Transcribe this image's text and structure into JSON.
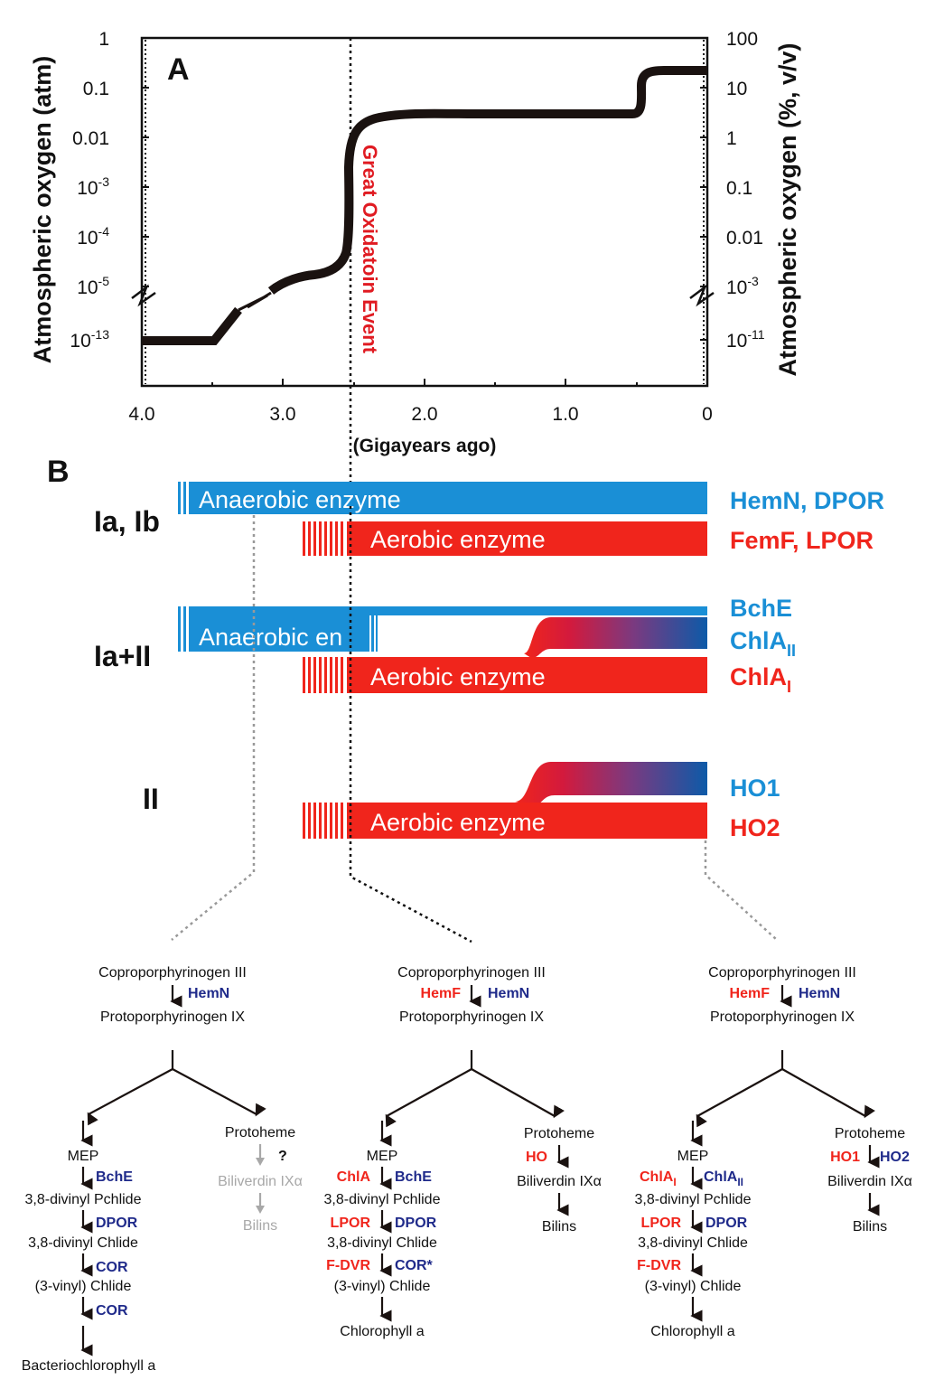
{
  "panel_a": {
    "label": "A",
    "left_axis_label": "Atmospheric oxygen (atm)",
    "right_axis_label": "Atmospheric oxygen (%, v/v)",
    "x_axis_label": "(Gigayears ago)",
    "event_label": "Great Oxidatoin Event",
    "event_color": "#e01b22",
    "x_ticks": [
      "4.0",
      "3.0",
      "2.0",
      "1.0",
      "0"
    ],
    "left_ticks": [
      {
        "base": "1",
        "exp": ""
      },
      {
        "base": "0.1",
        "exp": ""
      },
      {
        "base": "0.01",
        "exp": ""
      },
      {
        "base": "10",
        "exp": "-3"
      },
      {
        "base": "10",
        "exp": "-4"
      },
      {
        "base": "10",
        "exp": "-5"
      },
      {
        "base": "10",
        "exp": "-13"
      }
    ],
    "right_ticks": [
      {
        "base": "100",
        "exp": ""
      },
      {
        "base": "10",
        "exp": ""
      },
      {
        "base": "1",
        "exp": ""
      },
      {
        "base": "0.1",
        "exp": ""
      },
      {
        "base": "0.01",
        "exp": ""
      },
      {
        "base": "10",
        "exp": "-3"
      },
      {
        "base": "10",
        "exp": "-11"
      }
    ]
  },
  "panel_b": {
    "label": "B",
    "groups": [
      {
        "label": "Ia, Ib",
        "anaerobic_label": "Anaerobic enzyme",
        "aerobic_label": "Aerobic enzyme",
        "enzymes": [
          {
            "text": "HemN, DPOR",
            "sub": ""
          },
          {
            "text": "FemF, LPOR",
            "sub": ""
          }
        ]
      },
      {
        "label": "Ia+II",
        "anaerobic_label": "Anaerobic en",
        "aerobic_label": "Aerobic enzyme",
        "enzymes": [
          {
            "text": "BchE",
            "sub": ""
          },
          {
            "text": "ChlA",
            "sub": "II"
          },
          {
            "text": "ChlA",
            "sub": "I"
          }
        ]
      },
      {
        "label": "II",
        "aerobic_label": "Aerobic enzyme",
        "enzymes": [
          {
            "text": "HO1",
            "sub": ""
          },
          {
            "text": "HO2",
            "sub": ""
          }
        ]
      }
    ]
  },
  "colors": {
    "blue": "#1a8fd6",
    "red": "#f0251c",
    "navy": "#1f2a8a",
    "gray": "#a8a8a8",
    "curve": "#1a1210"
  },
  "pathways": {
    "col1": {
      "top": "Coproporphyrinogen III",
      "top_enzyme": "HemN",
      "proto": "Protoporphyrinogen IX",
      "steps": [
        {
          "compound": "MEP"
        },
        {
          "enzyme": "BchE"
        },
        {
          "compound": "3,8-divinyl Pchlide"
        },
        {
          "enzyme": "DPOR"
        },
        {
          "compound": "3,8-divinyl Chlide"
        },
        {
          "enzyme": "COR"
        },
        {
          "compound": "(3-vinyl) Chlide"
        },
        {
          "enzyme": "COR"
        },
        {
          "compound": "Bacteriochlorophyll a"
        }
      ],
      "heme": "Protoheme",
      "question": "?",
      "biliverdin": "Biliverdin IXα",
      "bilins": "Bilins"
    },
    "col2": {
      "top": "Coproporphyrinogen III",
      "top_enzyme_red": "HemF",
      "top_enzyme_blue": "HemN",
      "proto": "Protoporphyrinogen IX",
      "mep": "MEP",
      "e1_red": "ChlA",
      "e1_blue": "BchE",
      "c1": "3,8-divinyl Pchlide",
      "e2_red": "LPOR",
      "e2_blue": "DPOR",
      "c2": "3,8-divinyl Chlide",
      "e3_red": "F-DVR",
      "e3_blue": "COR*",
      "c3": "(3-vinyl) Chlide",
      "final": "Chlorophyll a",
      "heme": "Protoheme",
      "heme_enzyme": "HO",
      "biliverdin": "Biliverdin IXα",
      "bilins": "Bilins"
    },
    "col3": {
      "top": "Coproporphyrinogen III",
      "top_enzyme_red": "HemF",
      "top_enzyme_blue": "HemN",
      "proto": "Protoporphyrinogen IX",
      "mep": "MEP",
      "e1_red": "ChlA",
      "e1_red_sub": "I",
      "e1_blue": "ChlA",
      "e1_blue_sub": "II",
      "c1": "3,8-divinyl Pchlide",
      "e2_red": "LPOR",
      "e2_blue": "DPOR",
      "c2": "3,8-divinyl Chlide",
      "e3_red": "F-DVR",
      "c3": "(3-vinyl) Chlide",
      "final": "Chlorophyll a",
      "heme": "Protoheme",
      "heme_enzyme_red": "HO1",
      "heme_enzyme_blue": "HO2",
      "biliverdin": "Biliverdin IXα",
      "bilins": "Bilins"
    }
  }
}
